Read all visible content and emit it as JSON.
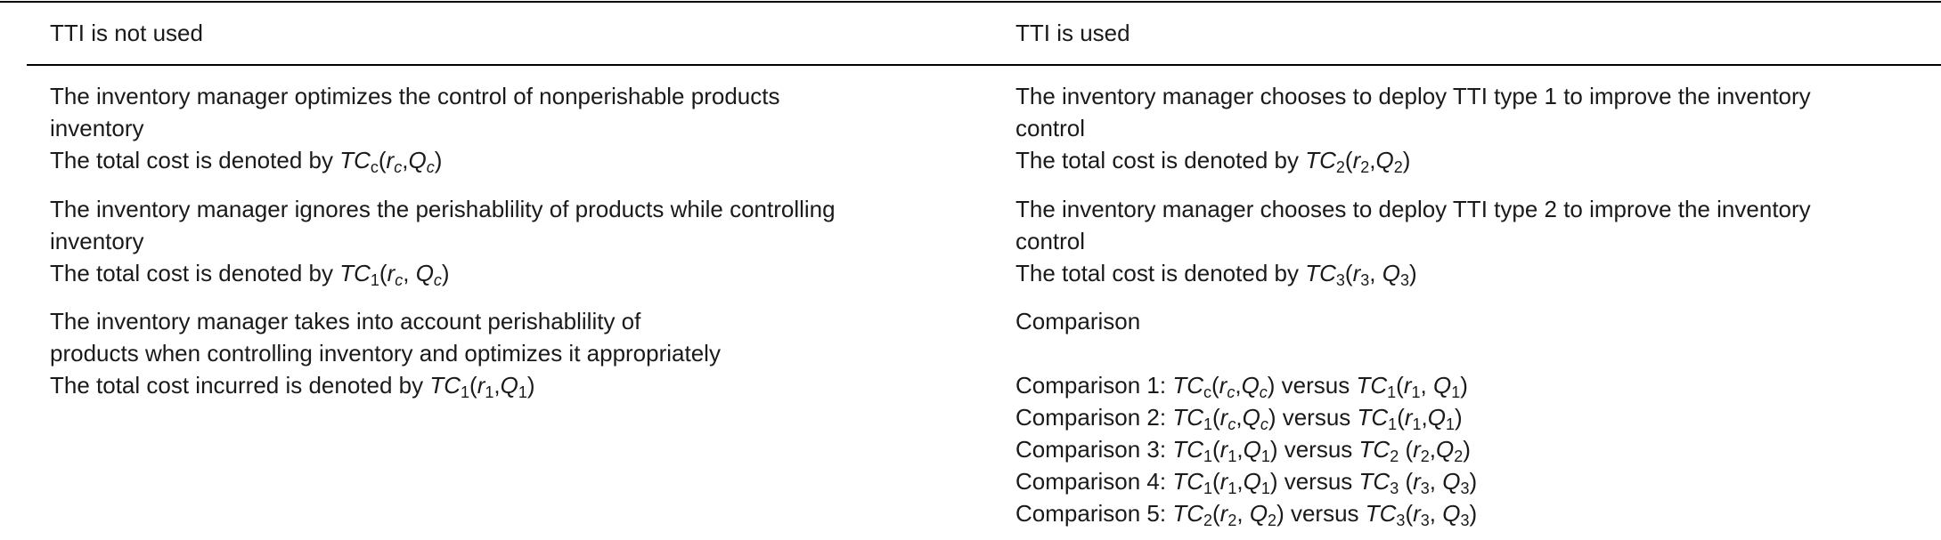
{
  "table": {
    "header": [
      "TTI is not used",
      "TTI is used"
    ],
    "rows": [
      [
        {
          "lines": [
            [
              {
                "n": "The inventory manager optimizes the control of nonperishable products"
              }
            ],
            [
              {
                "n": "inventory"
              }
            ],
            [
              {
                "n": "The total cost is denoted by "
              },
              {
                "i": "TC"
              },
              {
                "sn": "c"
              },
              {
                "n": "("
              },
              {
                "i": "r"
              },
              {
                "si": "c"
              },
              {
                "n": ","
              },
              {
                "i": "Q"
              },
              {
                "si": "c"
              },
              {
                "n": ")"
              }
            ]
          ]
        },
        {
          "lines": [
            [
              {
                "n": "The inventory manager chooses to deploy TTI type 1 to improve the inventory"
              }
            ],
            [
              {
                "n": "control"
              }
            ],
            [
              {
                "n": "The total cost is denoted by "
              },
              {
                "i": "TC"
              },
              {
                "sn": "2"
              },
              {
                "n": "("
              },
              {
                "i": "r"
              },
              {
                "sn": "2"
              },
              {
                "n": ","
              },
              {
                "i": "Q"
              },
              {
                "sn": "2"
              },
              {
                "n": ")"
              }
            ]
          ]
        }
      ],
      [
        {
          "lines": [
            [
              {
                "n": "The inventory manager ignores the perishablility of products while controlling"
              }
            ],
            [
              {
                "n": "inventory"
              }
            ],
            [
              {
                "n": "The total cost is denoted by "
              },
              {
                "i": "TC"
              },
              {
                "sn": "1"
              },
              {
                "n": "("
              },
              {
                "i": "r"
              },
              {
                "si": "c"
              },
              {
                "n": ", "
              },
              {
                "i": "Q"
              },
              {
                "si": "c"
              },
              {
                "n": ")"
              }
            ]
          ]
        },
        {
          "lines": [
            [
              {
                "n": "The inventory manager chooses to deploy TTI type 2 to improve the inventory"
              }
            ],
            [
              {
                "n": "control"
              }
            ],
            [
              {
                "n": "The total cost is denoted by "
              },
              {
                "i": "TC"
              },
              {
                "sn": "3"
              },
              {
                "n": "("
              },
              {
                "i": "r"
              },
              {
                "sn": "3"
              },
              {
                "n": ", "
              },
              {
                "i": "Q"
              },
              {
                "sn": "3"
              },
              {
                "n": ")"
              }
            ]
          ]
        }
      ],
      [
        {
          "lines": [
            [
              {
                "n": "The inventory manager takes into account perishablility of"
              }
            ],
            [
              {
                "n": "products when controlling inventory and optimizes it appropriately"
              }
            ],
            [
              {
                "n": "The total cost incurred is denoted by "
              },
              {
                "i": "TC"
              },
              {
                "sn": "1"
              },
              {
                "n": "("
              },
              {
                "i": "r"
              },
              {
                "sn": "1"
              },
              {
                "n": ","
              },
              {
                "i": "Q"
              },
              {
                "sn": "1"
              },
              {
                "n": ")"
              }
            ]
          ]
        },
        {
          "lines": [
            [
              {
                "n": "Comparison"
              }
            ]
          ],
          "comparisons": [
            [
              {
                "n": "Comparison 1: "
              },
              {
                "i": "TC"
              },
              {
                "sn": "c"
              },
              {
                "n": "("
              },
              {
                "i": "r"
              },
              {
                "si": "c"
              },
              {
                "n": ","
              },
              {
                "i": "Q"
              },
              {
                "si": "c"
              },
              {
                "n": ") versus "
              },
              {
                "i": "TC"
              },
              {
                "sn": "1"
              },
              {
                "n": "("
              },
              {
                "i": "r"
              },
              {
                "sn": "1"
              },
              {
                "n": ", "
              },
              {
                "i": "Q"
              },
              {
                "sn": "1"
              },
              {
                "n": ")"
              }
            ],
            [
              {
                "n": "Comparison 2: "
              },
              {
                "i": "TC"
              },
              {
                "sn": "1"
              },
              {
                "n": "("
              },
              {
                "i": "r"
              },
              {
                "si": "c"
              },
              {
                "n": ","
              },
              {
                "i": "Q"
              },
              {
                "si": "c"
              },
              {
                "n": ") versus "
              },
              {
                "i": "TC"
              },
              {
                "sn": "1"
              },
              {
                "n": "("
              },
              {
                "i": "r"
              },
              {
                "sn": "1"
              },
              {
                "n": ","
              },
              {
                "i": "Q"
              },
              {
                "sn": "1"
              },
              {
                "n": ")"
              }
            ],
            [
              {
                "n": "Comparison 3: "
              },
              {
                "i": "TC"
              },
              {
                "sn": "1"
              },
              {
                "n": "("
              },
              {
                "i": "r"
              },
              {
                "sn": "1"
              },
              {
                "n": ","
              },
              {
                "i": "Q"
              },
              {
                "sn": "1"
              },
              {
                "n": ") versus "
              },
              {
                "i": "TC"
              },
              {
                "sn": "2"
              },
              {
                "n": " ("
              },
              {
                "i": "r"
              },
              {
                "sn": "2"
              },
              {
                "n": ","
              },
              {
                "i": "Q"
              },
              {
                "sn": "2"
              },
              {
                "n": ")"
              }
            ],
            [
              {
                "n": "Comparison 4: "
              },
              {
                "i": "TC"
              },
              {
                "sn": "1"
              },
              {
                "n": "("
              },
              {
                "i": "r"
              },
              {
                "sn": "1"
              },
              {
                "n": ","
              },
              {
                "i": "Q"
              },
              {
                "sn": "1"
              },
              {
                "n": ") versus "
              },
              {
                "i": "TC"
              },
              {
                "sn": "3"
              },
              {
                "n": " ("
              },
              {
                "i": "r"
              },
              {
                "sn": "3"
              },
              {
                "n": ", "
              },
              {
                "i": "Q"
              },
              {
                "sn": "3"
              },
              {
                "n": ")"
              }
            ],
            [
              {
                "n": "Comparison 5: "
              },
              {
                "i": "TC"
              },
              {
                "sn": "2"
              },
              {
                "n": "("
              },
              {
                "i": "r"
              },
              {
                "sn": "2"
              },
              {
                "n": ", "
              },
              {
                "i": "Q"
              },
              {
                "sn": "2"
              },
              {
                "n": ") versus "
              },
              {
                "i": "TC"
              },
              {
                "sn": "3"
              },
              {
                "n": "("
              },
              {
                "i": "r"
              },
              {
                "sn": "3"
              },
              {
                "n": ", "
              },
              {
                "i": "Q"
              },
              {
                "sn": "3"
              },
              {
                "n": ")"
              }
            ]
          ]
        }
      ]
    ]
  }
}
